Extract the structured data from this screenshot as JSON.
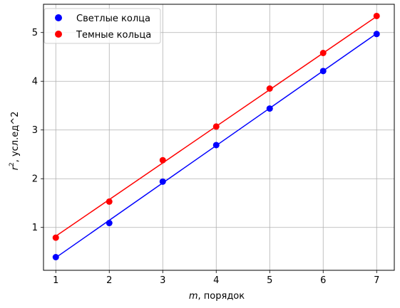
{
  "chart_data": {
    "type": "scatter",
    "xlabel_var": "m",
    "xlabel_rest": ", порядок",
    "ylabel_var": "r",
    "ylabel_sup": "2",
    "ylabel_rest": ", усл.ед^2",
    "xlim": [
      0.77,
      7.33
    ],
    "ylim": [
      0.12,
      5.58
    ],
    "xticks": [
      1,
      2,
      3,
      4,
      5,
      6,
      7
    ],
    "yticks": [
      1,
      2,
      3,
      4,
      5
    ],
    "grid": true,
    "legend": "top-left",
    "series": [
      {
        "name": "Светлые колца",
        "color": "#0000ff",
        "x": [
          1,
          2,
          3,
          4,
          5,
          6,
          7
        ],
        "y": [
          0.39,
          1.09,
          1.94,
          2.69,
          3.44,
          4.21,
          4.97
        ],
        "fit": [
          [
            1,
            0.38
          ],
          [
            7,
            4.98
          ]
        ]
      },
      {
        "name": "Темные кольца",
        "color": "#ff0000",
        "x": [
          1,
          2,
          3,
          4,
          5,
          6,
          7
        ],
        "y": [
          0.79,
          1.53,
          2.38,
          3.07,
          3.85,
          4.58,
          5.34
        ],
        "fit": [
          [
            1,
            0.82
          ],
          [
            7,
            5.33
          ]
        ]
      }
    ]
  }
}
